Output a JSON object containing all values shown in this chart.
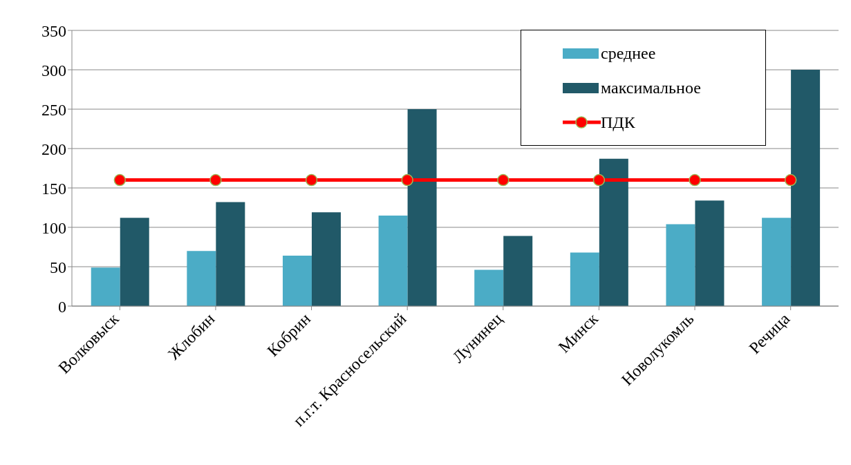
{
  "chart_data": {
    "type": "bar",
    "categories": [
      "Волковыск",
      "Жлобин",
      "Кобрин",
      "п.г.т. Красносельский",
      "Лунинец",
      "Минск",
      "Новолукомль",
      "Речица"
    ],
    "series": [
      {
        "name": "среднее",
        "color": "#4bacc6",
        "values": [
          49,
          70,
          64,
          115,
          46,
          68,
          104,
          112
        ]
      },
      {
        "name": "максимальное",
        "color": "#215968",
        "values": [
          112,
          132,
          119,
          250,
          89,
          187,
          134,
          300
        ]
      },
      {
        "name": "ПДК",
        "type": "line",
        "color": "#ff0000",
        "values": [
          160,
          160,
          160,
          160,
          160,
          160,
          160,
          160
        ],
        "marker": "circle",
        "line_style": "solid"
      }
    ],
    "ylim": [
      0,
      350
    ],
    "yticks": [
      0,
      50,
      100,
      150,
      200,
      250,
      300,
      350
    ],
    "grid": "y",
    "legend": "top right"
  }
}
